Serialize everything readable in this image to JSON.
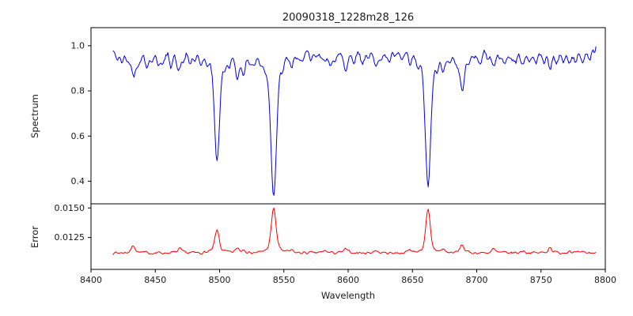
{
  "chart_data": {
    "type": "line",
    "title": "20090318_1228m28_126",
    "xlabel": "Wavelength",
    "legend": "none",
    "grid": false,
    "x": {
      "min": 8400,
      "max": 8800,
      "ticks": [
        8400,
        8450,
        8500,
        8550,
        8600,
        8650,
        8700,
        8750,
        8800
      ],
      "data_min": 8417,
      "data_max": 8793,
      "step": 0.75
    },
    "panels": [
      {
        "name": "spectrum",
        "ylabel": "Spectrum",
        "color": "#0000ee",
        "ylim": [
          0.3,
          1.08
        ],
        "yticks": [
          0.4,
          0.6,
          0.8,
          1.0
        ],
        "ytick_labels": [
          "0.4",
          "0.6",
          "0.8",
          "1.0"
        ],
        "continuum": 0.978,
        "noise_amp": 0.026,
        "noise_seed": 42,
        "absorption_lines": [
          [
            8420,
            0.03,
            1.2
          ],
          [
            8424,
            0.05,
            1.3
          ],
          [
            8429,
            0.04,
            1.2
          ],
          [
            8433,
            0.1,
            1.4
          ],
          [
            8437,
            0.05,
            1.2
          ],
          [
            8443,
            0.06,
            1.3
          ],
          [
            8447,
            0.04,
            1.2
          ],
          [
            8452,
            0.05,
            1.2
          ],
          [
            8456,
            0.06,
            1.3
          ],
          [
            8462,
            0.05,
            1.2
          ],
          [
            8468,
            0.09,
            1.4
          ],
          [
            8472,
            0.04,
            1.2
          ],
          [
            8477,
            0.05,
            1.2
          ],
          [
            8481,
            0.04,
            1.2
          ],
          [
            8485,
            0.05,
            1.3
          ],
          [
            8490,
            0.04,
            1.2
          ],
          [
            8498.02,
            0.48,
            1.9
          ],
          [
            8504,
            0.04,
            1.2
          ],
          [
            8508,
            0.05,
            1.2
          ],
          [
            8514,
            0.11,
            1.5
          ],
          [
            8519,
            0.09,
            1.4
          ],
          [
            8524,
            0.04,
            1.2
          ],
          [
            8527,
            0.05,
            1.2
          ],
          [
            8532,
            0.04,
            1.2
          ],
          [
            8536,
            0.03,
            1.2
          ],
          [
            8542.09,
            0.63,
            2.1
          ],
          [
            8549,
            0.04,
            1.3
          ],
          [
            8556,
            0.06,
            1.3
          ],
          [
            8560,
            0.04,
            1.2
          ],
          [
            8565,
            0.05,
            1.2
          ],
          [
            8571,
            0.04,
            1.2
          ],
          [
            8575,
            0.03,
            1.2
          ],
          [
            8582,
            0.06,
            1.3
          ],
          [
            8586,
            0.04,
            1.2
          ],
          [
            8590,
            0.05,
            1.2
          ],
          [
            8598,
            0.08,
            1.4
          ],
          [
            8604,
            0.04,
            1.2
          ],
          [
            8611,
            0.05,
            1.2
          ],
          [
            8616,
            0.03,
            1.2
          ],
          [
            8621,
            0.06,
            1.3
          ],
          [
            8626,
            0.04,
            1.2
          ],
          [
            8632,
            0.05,
            1.2
          ],
          [
            8637,
            0.03,
            1.2
          ],
          [
            8642,
            0.04,
            1.2
          ],
          [
            8648,
            0.06,
            1.3
          ],
          [
            8654,
            0.04,
            1.2
          ],
          [
            8662.14,
            0.6,
            2.0
          ],
          [
            8669,
            0.04,
            1.3
          ],
          [
            8674,
            0.08,
            1.4
          ],
          [
            8680,
            0.04,
            1.2
          ],
          [
            8685,
            0.04,
            1.2
          ],
          [
            8688.6,
            0.18,
            1.6
          ],
          [
            8694,
            0.04,
            1.2
          ],
          [
            8699,
            0.03,
            1.2
          ],
          [
            8703,
            0.04,
            1.2
          ],
          [
            8709,
            0.03,
            1.2
          ],
          [
            8713,
            0.06,
            1.3
          ],
          [
            8718,
            0.04,
            1.2
          ],
          [
            8722,
            0.05,
            1.2
          ],
          [
            8727,
            0.03,
            1.2
          ],
          [
            8730,
            0.05,
            1.2
          ],
          [
            8736,
            0.06,
            1.3
          ],
          [
            8741,
            0.04,
            1.2
          ],
          [
            8746,
            0.05,
            1.2
          ],
          [
            8752,
            0.05,
            1.2
          ],
          [
            8757,
            0.07,
            1.3
          ],
          [
            8762,
            0.04,
            1.2
          ],
          [
            8767,
            0.05,
            1.2
          ],
          [
            8772,
            0.05,
            1.2
          ],
          [
            8777,
            0.04,
            1.2
          ],
          [
            8782,
            0.05,
            1.2
          ],
          [
            8788,
            0.04,
            1.2
          ]
        ]
      },
      {
        "name": "error",
        "ylabel": "Error",
        "color": "#ff0000",
        "ylim": [
          0.0098,
          0.01535
        ],
        "yticks": [
          0.0125,
          0.015
        ],
        "ytick_labels": [
          "0.0125",
          "0.0150"
        ],
        "baseline": 0.0112,
        "noise_amp": 0.00018,
        "noise_seed": 7,
        "emission_peaks": [
          [
            8433,
            0.0006,
            1.5
          ],
          [
            8469,
            0.0003,
            1.4
          ],
          [
            8498.02,
            0.0019,
            1.6
          ],
          [
            8514,
            0.0004,
            1.4
          ],
          [
            8519,
            0.0003,
            1.3
          ],
          [
            8542.09,
            0.0038,
            1.7
          ],
          [
            8556,
            0.0002,
            1.3
          ],
          [
            8582,
            0.0002,
            1.3
          ],
          [
            8598,
            0.0003,
            1.4
          ],
          [
            8621,
            0.0002,
            1.3
          ],
          [
            8648,
            0.0003,
            1.3
          ],
          [
            8662.14,
            0.0036,
            1.6
          ],
          [
            8674,
            0.0003,
            1.3
          ],
          [
            8688.6,
            0.0007,
            1.4
          ],
          [
            8713,
            0.0003,
            1.3
          ],
          [
            8736,
            0.0002,
            1.3
          ],
          [
            8757,
            0.0005,
            1.3
          ],
          [
            8772,
            0.0002,
            1.3
          ]
        ]
      }
    ]
  }
}
